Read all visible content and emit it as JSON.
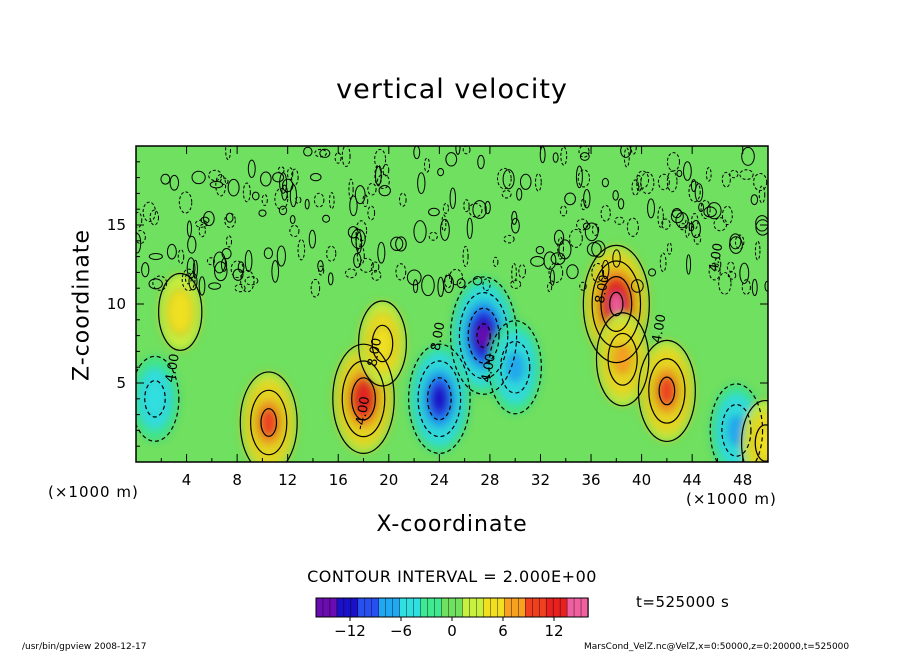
{
  "title": "vertical velocity",
  "chart_data": {
    "type": "heatmap",
    "title": "vertical velocity",
    "xlabel": "X-coordinate",
    "ylabel": "Z-coordinate",
    "x_unit": "(×1000 m)",
    "xlim": [
      0,
      50
    ],
    "ylim": [
      0,
      20
    ],
    "x_ticks": [
      "4",
      "8",
      "12",
      "16",
      "20",
      "24",
      "28",
      "32",
      "36",
      "40",
      "44",
      "48"
    ],
    "y_ticks": [
      "5",
      "10",
      "15"
    ],
    "contour_labels": [
      "4.00",
      "8.00",
      "-4.00",
      "4.00",
      "8.00",
      "4.00",
      "8.00",
      "4.00"
    ],
    "features": [
      {
        "x": 1.5,
        "z": 4.0,
        "value": -6
      },
      {
        "x": 3.5,
        "z": 9.5,
        "value": 4
      },
      {
        "x": 10.5,
        "z": 2.5,
        "value": 10
      },
      {
        "x": 18.0,
        "z": 4.0,
        "value": 12
      },
      {
        "x": 19.5,
        "z": 7.5,
        "value": 6
      },
      {
        "x": 24.0,
        "z": 4.0,
        "value": -12
      },
      {
        "x": 27.5,
        "z": 8.0,
        "value": -14
      },
      {
        "x": 30.0,
        "z": 6.0,
        "value": -8
      },
      {
        "x": 38.0,
        "z": 10.0,
        "value": 14
      },
      {
        "x": 38.5,
        "z": 6.5,
        "value": 8
      },
      {
        "x": 42.0,
        "z": 4.5,
        "value": 10
      },
      {
        "x": 47.5,
        "z": 2.0,
        "value": -8
      },
      {
        "x": 49.8,
        "z": 1.2,
        "value": 6
      }
    ],
    "colorbar": {
      "ticks": [
        "−12",
        "−6",
        "0",
        "6",
        "12"
      ],
      "range": [
        -16,
        16
      ],
      "colors": [
        "#6a0cb0",
        "#1a10c8",
        "#2850f0",
        "#20a8f0",
        "#30e0e0",
        "#40e890",
        "#70e060",
        "#c8f040",
        "#f0e020",
        "#f8a020",
        "#f04020",
        "#e82020",
        "#f060a0"
      ]
    }
  },
  "contour_interval": "CONTOUR INTERVAL = 2.000E+00",
  "time_label": "t=525000 s",
  "footer": {
    "left": "/usr/bin/gpview   2008-12-17",
    "right": "MarsCond_VelZ.nc@VelZ,x=0:50000,z=0:20000,t=525000"
  }
}
